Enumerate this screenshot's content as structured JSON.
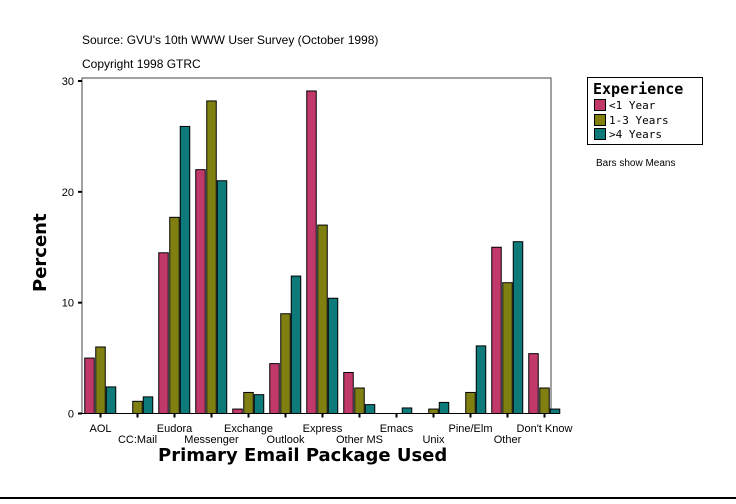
{
  "header": {
    "source": "Source: GVU's 10th WWW User Survey (October 1998)",
    "copyright": "Copyright 1998 GTRC"
  },
  "note": "Bars show Means",
  "chart_data": {
    "type": "bar",
    "xlabel": "Primary Email Package Used",
    "ylabel": "Percent",
    "ylim": [
      0,
      30
    ],
    "yticks": [
      "0",
      "10",
      "20",
      "30"
    ],
    "grid": false,
    "legend_title": "Experience",
    "legend_position": "right",
    "categories": [
      "AOL",
      "CC:Mail",
      "Eudora",
      "Messenger",
      "Exchange",
      "Outlook",
      "Express",
      "Other MS",
      "Emacs",
      "Unix",
      "Pine/Elm",
      "Other",
      "Don't Know"
    ],
    "series": [
      {
        "name": "<1 Year",
        "color": "#c0396a",
        "values": [
          5.0,
          0,
          14.5,
          22.0,
          0.4,
          4.5,
          29.1,
          3.7,
          0,
          0,
          0,
          15.0,
          5.4
        ]
      },
      {
        "name": "1-3 Years",
        "color": "#808012",
        "values": [
          6.0,
          1.1,
          17.7,
          28.2,
          1.9,
          9.0,
          17.0,
          2.3,
          0,
          0.4,
          1.9,
          11.8,
          2.3
        ]
      },
      {
        "name": ">4 Years",
        "color": "#0e7a7a",
        "values": [
          2.4,
          1.5,
          25.9,
          21.0,
          1.7,
          12.4,
          10.4,
          0.8,
          0.5,
          1.0,
          6.1,
          15.5,
          0.4
        ]
      }
    ]
  }
}
